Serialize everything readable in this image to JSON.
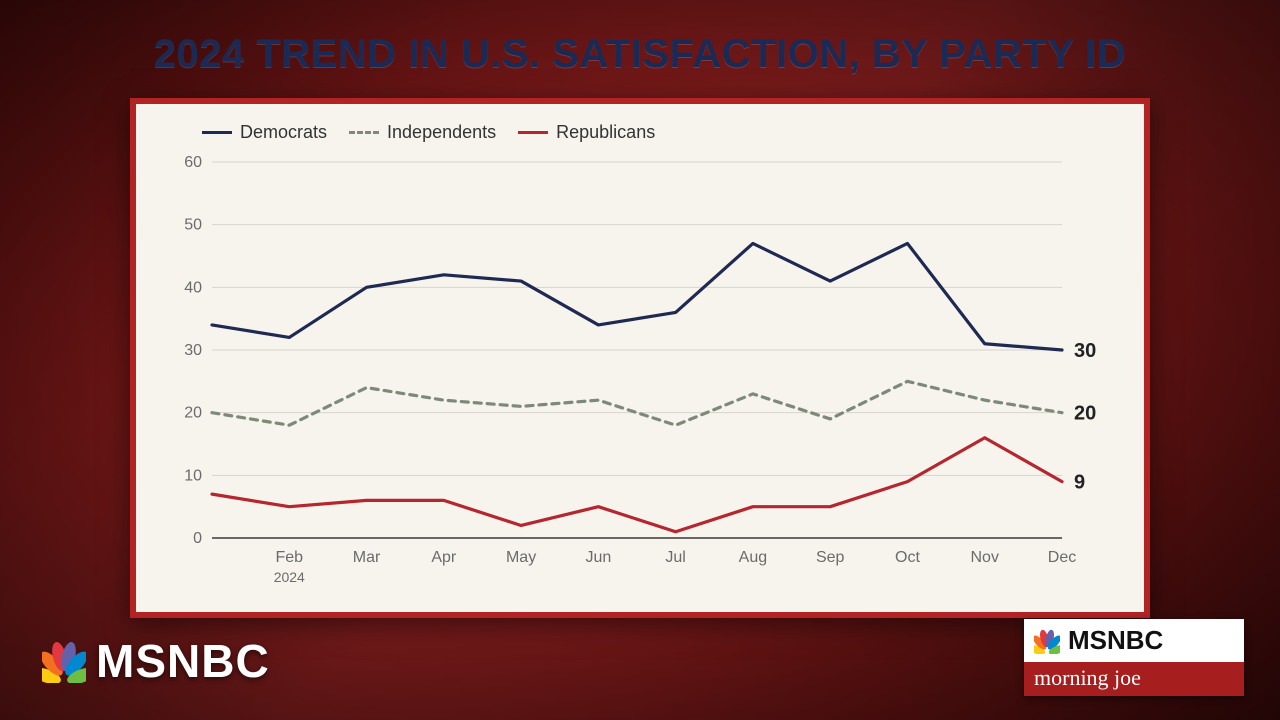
{
  "headline": "2024 TREND IN U.S. SATISFACTION, BY PARTY ID",
  "branding": {
    "network": "MSNBC",
    "show": "morning joe",
    "peacock_colors": [
      "#fccc12",
      "#f37021",
      "#e2383f",
      "#6460aa",
      "#0089d0",
      "#6fbe44"
    ]
  },
  "panel": {
    "outer_border_color": "#b22424",
    "inner_bg": "#f7f4ee"
  },
  "chart": {
    "type": "line",
    "x_labels": [
      "",
      "Feb",
      "Mar",
      "Apr",
      "May",
      "Jun",
      "Jul",
      "Aug",
      "Sep",
      "Oct",
      "Nov",
      "Dec"
    ],
    "x_sublabel_at": 1,
    "x_sublabel": "2024",
    "ylim": [
      0,
      60
    ],
    "ytick_step": 10,
    "grid_color": "#d8d4cc",
    "axis_color": "#3a3a3a",
    "background_color": "#f7f4ee",
    "tick_font_color": "#6b6b6b",
    "tick_fontsize": 16,
    "line_width": 3.2,
    "legend": [
      {
        "label": "Democrats",
        "color": "#1f2a52",
        "dash": false
      },
      {
        "label": "Independents",
        "color": "#7d8a7a",
        "dash": true
      },
      {
        "label": "Republicans",
        "color": "#b5262e",
        "dash": false
      }
    ],
    "series": {
      "democrats": {
        "color": "#1f2a52",
        "dash": false,
        "end_label": "30",
        "values": [
          34,
          32,
          40,
          42,
          41,
          34,
          36,
          47,
          41,
          47,
          31,
          30
        ]
      },
      "independents": {
        "color": "#7d8a7a",
        "dash": true,
        "end_label": "20",
        "values": [
          20,
          18,
          24,
          22,
          21,
          22,
          18,
          23,
          19,
          25,
          22,
          20
        ]
      },
      "republicans": {
        "color": "#b5262e",
        "dash": false,
        "end_label": "9",
        "values": [
          7,
          5,
          6,
          6,
          2,
          5,
          1,
          5,
          5,
          9,
          16,
          9
        ]
      }
    }
  }
}
